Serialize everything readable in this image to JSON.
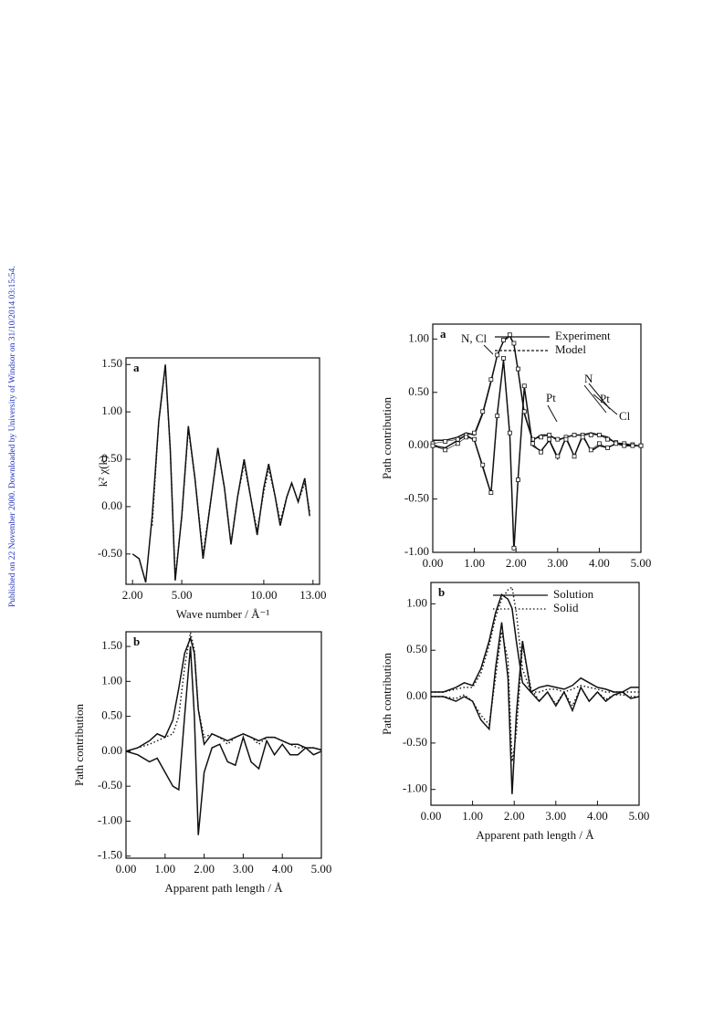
{
  "watermark": "Published on 22 November 2000. Downloaded by University of Windsor on 31/10/2014 03:15:54.",
  "chart_data": [
    {
      "type": "line",
      "label": "a",
      "ylabel": "k² χ(k)",
      "xlabel": "Wave number / Å⁻¹",
      "xlim": [
        1.6,
        13.4
      ],
      "ylim": [
        -0.82,
        1.57
      ],
      "xticks": [
        {
          "value": 2,
          "label": "2.00"
        },
        {
          "value": 5,
          "label": "5.00"
        },
        {
          "value": 10,
          "label": "10.00"
        },
        {
          "value": 13,
          "label": "13.00"
        }
      ],
      "yticks": [
        {
          "value": -0.5,
          "label": "-0.50"
        },
        {
          "value": 0,
          "label": "0.00"
        },
        {
          "value": 0.5,
          "label": "0.50"
        },
        {
          "value": 1,
          "label": "1.00"
        },
        {
          "value": 1.5,
          "label": "1.50"
        }
      ],
      "x": [
        2.0,
        2.4,
        2.8,
        3.2,
        3.6,
        4.0,
        4.3,
        4.6,
        5.0,
        5.4,
        5.8,
        6.3,
        6.8,
        7.2,
        7.6,
        8.0,
        8.4,
        8.8,
        9.2,
        9.6,
        10.0,
        10.3,
        10.7,
        11.0,
        11.4,
        11.7,
        12.1,
        12.5,
        12.8
      ],
      "series": [
        {
          "color": "#111111",
          "style": "solid",
          "values": [
            -0.5,
            -0.55,
            -0.8,
            -0.1,
            0.9,
            1.5,
            0.6,
            -0.78,
            -0.1,
            0.85,
            0.3,
            -0.55,
            0.1,
            0.62,
            0.2,
            -0.4,
            0.1,
            0.5,
            0.1,
            -0.3,
            0.2,
            0.45,
            0.1,
            -0.2,
            0.1,
            0.25,
            0.05,
            0.3,
            -0.1
          ]
        },
        {
          "color": "#111111",
          "style": "dotted",
          "values": [
            null,
            null,
            null,
            -0.2,
            0.9,
            1.48,
            0.6,
            -0.75,
            -0.1,
            0.82,
            0.3,
            -0.5,
            0.1,
            0.6,
            0.2,
            -0.38,
            0.1,
            0.45,
            0.1,
            -0.25,
            0.15,
            0.4,
            0.1,
            -0.15,
            0.1,
            0.25,
            0.05,
            0.25,
            -0.05
          ]
        }
      ]
    },
    {
      "type": "line",
      "label": "b",
      "ylabel": "Path contribution",
      "xlabel": "Apparent path length / Å",
      "xlim": [
        0,
        5
      ],
      "ylim": [
        -1.53,
        1.71
      ],
      "xticks": [
        {
          "value": 0,
          "label": "0.00"
        },
        {
          "value": 1,
          "label": "1.00"
        },
        {
          "value": 2,
          "label": "2.00"
        },
        {
          "value": 3,
          "label": "3.00"
        },
        {
          "value": 4,
          "label": "4.00"
        },
        {
          "value": 5,
          "label": "5.00"
        }
      ],
      "yticks": [
        {
          "value": -1.5,
          "label": "-1.50"
        },
        {
          "value": -1,
          "label": "-1.00"
        },
        {
          "value": -0.5,
          "label": "-0.50"
        },
        {
          "value": 0,
          "label": "0.00"
        },
        {
          "value": 0.5,
          "label": "0.50"
        },
        {
          "value": 1,
          "label": "1.00"
        },
        {
          "value": 1.5,
          "label": "1.50"
        }
      ],
      "x": [
        0,
        0.3,
        0.6,
        0.8,
        1.0,
        1.2,
        1.35,
        1.5,
        1.65,
        1.75,
        1.85,
        2.0,
        2.2,
        2.4,
        2.6,
        2.8,
        3.0,
        3.2,
        3.4,
        3.6,
        3.8,
        4.0,
        4.2,
        4.4,
        4.6,
        4.8,
        5.0
      ],
      "series": [
        {
          "color": "#111111",
          "style": "solid",
          "values": [
            0,
            0.05,
            0.15,
            0.25,
            0.2,
            0.45,
            0.9,
            1.4,
            1.62,
            1.4,
            0.6,
            0.1,
            0.25,
            0.2,
            0.15,
            0.2,
            0.25,
            0.2,
            0.15,
            0.2,
            0.2,
            0.15,
            0.1,
            0.1,
            0.05,
            0.05,
            0.02
          ]
        },
        {
          "color": "#111111",
          "style": "solid",
          "values": [
            0,
            -0.05,
            -0.15,
            -0.1,
            -0.3,
            -0.5,
            -0.55,
            0.5,
            1.5,
            0.5,
            -1.2,
            -0.3,
            0.05,
            0.1,
            -0.15,
            -0.2,
            0.2,
            -0.15,
            -0.25,
            0.15,
            -0.05,
            0.1,
            -0.05,
            -0.05,
            0.05,
            -0.05,
            0
          ]
        },
        {
          "color": "#111111",
          "style": "dotted",
          "values": [
            0,
            0.05,
            0.1,
            0.15,
            0.2,
            0.25,
            0.5,
            1.2,
            1.7,
            1.45,
            0.6,
            0.2,
            0.25,
            0.2,
            0.1,
            0.2,
            0.25,
            0.2,
            0.1,
            0.2,
            0.2,
            0.15,
            0.1,
            0.05,
            0.05,
            0.05,
            0.02
          ]
        }
      ]
    },
    {
      "type": "line",
      "label": "a",
      "ylabel": "Path contribution",
      "legend": "upper right",
      "xlim": [
        0,
        5
      ],
      "ylim": [
        -1.0,
        1.14
      ],
      "xticks": [
        {
          "value": 0,
          "label": "0.00"
        },
        {
          "value": 1,
          "label": "1.00"
        },
        {
          "value": 2,
          "label": "2.00"
        },
        {
          "value": 3,
          "label": "3.00"
        },
        {
          "value": 4,
          "label": "4.00"
        },
        {
          "value": 5,
          "label": "5.00"
        }
      ],
      "yticks": [
        {
          "value": -1,
          "label": "-1.00"
        },
        {
          "value": -0.5,
          "label": "-0.50"
        },
        {
          "value": 0,
          "label": "0.00"
        },
        {
          "value": 0.5,
          "label": "0.50"
        },
        {
          "value": 1,
          "label": "1.00"
        }
      ],
      "annotations": [
        "N, Cl",
        "Pt",
        "N",
        "Pt",
        "Cl"
      ],
      "x": [
        0,
        0.3,
        0.6,
        0.8,
        1.0,
        1.2,
        1.4,
        1.55,
        1.7,
        1.85,
        1.95,
        2.05,
        2.2,
        2.4,
        2.6,
        2.8,
        3.0,
        3.2,
        3.4,
        3.6,
        3.8,
        4.0,
        4.2,
        4.4,
        4.6,
        4.8,
        5.0
      ],
      "series": [
        {
          "name": "Experiment",
          "color": "#111111",
          "style": "solid",
          "values": [
            0.05,
            0.05,
            0.08,
            0.12,
            0.1,
            0.3,
            0.6,
            0.85,
            0.98,
            1.03,
            0.95,
            0.7,
            0.3,
            0.05,
            0.1,
            0.1,
            0.05,
            0.08,
            0.1,
            0.1,
            0.12,
            0.1,
            0.08,
            0.02,
            0.02,
            0,
            0
          ]
        },
        {
          "color": "#111111",
          "style": "solid",
          "values": [
            0,
            -0.02,
            0.05,
            0.1,
            0.05,
            -0.2,
            -0.45,
            0.3,
            0.8,
            0.1,
            -0.98,
            -0.3,
            0.55,
            0,
            -0.05,
            0.05,
            -0.12,
            0.08,
            -0.1,
            0.1,
            -0.05,
            0,
            -0.02,
            0.02,
            0,
            0,
            0
          ]
        },
        {
          "name": "Model",
          "color": "#111111",
          "style": "squares",
          "values": [
            0.02,
            0.04,
            0.06,
            0.1,
            0.12,
            0.32,
            0.62,
            0.85,
            0.99,
            1.04,
            0.96,
            0.72,
            0.32,
            0.06,
            0.08,
            0.1,
            0.06,
            0.08,
            0.1,
            0.1,
            0.1,
            0.1,
            0.06,
            0.03,
            0.02,
            0.01,
            0
          ]
        },
        {
          "color": "#111111",
          "style": "squares",
          "values": [
            0,
            -0.04,
            0.02,
            0.08,
            0.06,
            -0.18,
            -0.44,
            0.28,
            0.82,
            0.12,
            -0.96,
            -0.32,
            0.56,
            0.02,
            -0.06,
            0.06,
            -0.1,
            0.06,
            -0.1,
            0.08,
            -0.04,
            0.02,
            -0.02,
            0.02,
            0,
            0,
            0
          ]
        }
      ]
    },
    {
      "type": "line",
      "label": "b",
      "ylabel": "Path contribution",
      "xlabel": "Apparent path length / Å",
      "legend": "upper right",
      "xlim": [
        0,
        5
      ],
      "ylim": [
        -1.17,
        1.23
      ],
      "xticks": [
        {
          "value": 0,
          "label": "0.00"
        },
        {
          "value": 1,
          "label": "1.00"
        },
        {
          "value": 2,
          "label": "2.00"
        },
        {
          "value": 3,
          "label": "3.00"
        },
        {
          "value": 4,
          "label": "4.00"
        },
        {
          "value": 5,
          "label": "5.00"
        }
      ],
      "yticks": [
        {
          "value": -1,
          "label": "-1.00"
        },
        {
          "value": -0.5,
          "label": "-0.50"
        },
        {
          "value": 0,
          "label": "0.00"
        },
        {
          "value": 0.5,
          "label": "0.50"
        },
        {
          "value": 1,
          "label": "1.00"
        }
      ],
      "x": [
        0,
        0.3,
        0.6,
        0.8,
        1.0,
        1.2,
        1.4,
        1.55,
        1.7,
        1.85,
        1.95,
        2.05,
        2.2,
        2.4,
        2.6,
        2.8,
        3.0,
        3.2,
        3.4,
        3.6,
        3.8,
        4.0,
        4.2,
        4.4,
        4.6,
        4.8,
        5.0
      ],
      "series": [
        {
          "name": "Solution",
          "color": "#111111",
          "style": "solid",
          "values": [
            0.05,
            0.05,
            0.1,
            0.15,
            0.12,
            0.3,
            0.6,
            0.9,
            1.1,
            1.05,
            0.95,
            0.6,
            0.15,
            0.05,
            0.1,
            0.12,
            0.1,
            0.08,
            0.12,
            0.2,
            0.15,
            0.1,
            0.08,
            0.05,
            0.05,
            0.1,
            0.1
          ]
        },
        {
          "color": "#111111",
          "style": "solid",
          "values": [
            0,
            0,
            -0.05,
            0,
            -0.05,
            -0.25,
            -0.35,
            0.3,
            0.8,
            0.2,
            -1.05,
            -0.2,
            0.6,
            0.05,
            -0.05,
            0.05,
            -0.1,
            0.05,
            -0.15,
            0.1,
            -0.05,
            0.05,
            -0.05,
            0.02,
            0.05,
            -0.02,
            0
          ]
        },
        {
          "name": "Solid",
          "color": "#111111",
          "style": "dotted",
          "values": [
            0.05,
            0.05,
            0.08,
            0.1,
            0.1,
            0.25,
            0.55,
            0.85,
            1.05,
            1.15,
            1.18,
            0.9,
            0.3,
            0.05,
            0.05,
            0.08,
            0.08,
            0.05,
            0.08,
            0.12,
            0.1,
            0.08,
            0.05,
            0.05,
            0.05,
            0.05,
            0.05
          ]
        },
        {
          "color": "#111111",
          "style": "dotted",
          "values": [
            0,
            0,
            -0.02,
            0.02,
            -0.05,
            -0.2,
            -0.3,
            0.2,
            0.7,
            0.4,
            -0.7,
            -0.4,
            0.55,
            0.1,
            -0.05,
            0.05,
            -0.08,
            0.05,
            -0.1,
            0.1,
            -0.05,
            0.05,
            -0.03,
            0.02,
            0.02,
            0,
            0
          ]
        }
      ]
    }
  ]
}
